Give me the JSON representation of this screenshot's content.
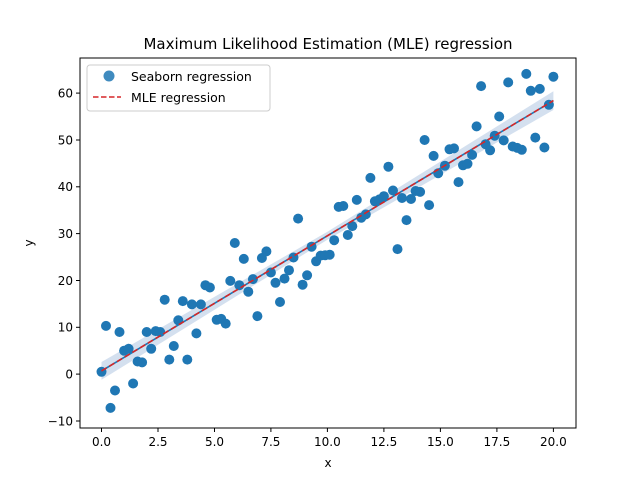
{
  "chart_data": {
    "type": "scatter",
    "title": "Maximum Likelihood Estimation (MLE) regression",
    "xlabel": "x",
    "ylabel": "y",
    "xlim": [
      -0.95,
      21.0
    ],
    "ylim": [
      -11.5,
      67.5
    ],
    "x_ticks": [
      0.0,
      2.5,
      5.0,
      7.5,
      10.0,
      12.5,
      15.0,
      17.5,
      20.0
    ],
    "x_tick_labels": [
      "0.0",
      "2.5",
      "5.0",
      "7.5",
      "10.0",
      "12.5",
      "15.0",
      "17.5",
      "20.0"
    ],
    "y_ticks": [
      -10,
      0,
      10,
      20,
      30,
      40,
      50,
      60
    ],
    "y_tick_labels": [
      "−10",
      "0",
      "10",
      "20",
      "30",
      "40",
      "50",
      "60"
    ],
    "grid": false,
    "legend": {
      "placement": "top-left",
      "entries": [
        "Seaborn regression",
        "MLE regression"
      ]
    },
    "colors": {
      "points": "#1f77b4",
      "mle_line": "#d62728",
      "seaborn_line": "#1f77b4",
      "confidence_band": "#c6d5ea"
    },
    "series": [
      {
        "name": "Seaborn regression",
        "kind": "scatter",
        "x": [
          0.0,
          0.2,
          0.4,
          0.6,
          0.8,
          1.0,
          1.2,
          1.4,
          1.6,
          1.8,
          2.0,
          2.2,
          2.4,
          2.6,
          2.8,
          3.0,
          3.2,
          3.4,
          3.6,
          3.8,
          4.0,
          4.2,
          4.4,
          4.6,
          4.8,
          5.1,
          5.3,
          5.5,
          5.7,
          5.9,
          6.1,
          6.3,
          6.5,
          6.7,
          6.9,
          7.1,
          7.3,
          7.5,
          7.7,
          7.9,
          8.1,
          8.3,
          8.5,
          8.7,
          8.9,
          9.1,
          9.3,
          9.5,
          9.7,
          9.9,
          10.1,
          10.3,
          10.5,
          10.7,
          10.9,
          11.1,
          11.3,
          11.5,
          11.7,
          11.9,
          12.1,
          12.3,
          12.5,
          12.7,
          12.9,
          13.1,
          13.3,
          13.5,
          13.7,
          13.9,
          14.1,
          14.3,
          14.5,
          14.7,
          14.9,
          15.2,
          15.4,
          15.6,
          15.8,
          16.0,
          16.2,
          16.4,
          16.6,
          16.8,
          17.0,
          17.2,
          17.4,
          17.6,
          17.8,
          18.0,
          18.2,
          18.4,
          18.6,
          18.8,
          19.0,
          19.2,
          19.4,
          19.6,
          19.8,
          20.0
        ],
        "y": [
          0.5,
          10.3,
          -7.2,
          -3.5,
          9.0,
          5.0,
          5.4,
          -2.0,
          2.7,
          2.5,
          9.0,
          5.4,
          9.2,
          9.0,
          15.9,
          3.1,
          6.0,
          11.5,
          15.6,
          3.1,
          14.9,
          8.7,
          14.9,
          19.0,
          18.5,
          11.6,
          11.8,
          10.8,
          19.9,
          28.0,
          19.0,
          24.6,
          17.6,
          20.3,
          12.4,
          24.8,
          26.2,
          21.7,
          19.5,
          15.4,
          20.4,
          22.2,
          24.9,
          33.2,
          19.1,
          21.1,
          27.2,
          24.1,
          25.3,
          25.4,
          25.5,
          28.6,
          35.7,
          35.9,
          29.7,
          31.6,
          37.2,
          33.4,
          34.1,
          41.9,
          36.9,
          37.3,
          38.0,
          44.3,
          39.2,
          26.7,
          37.6,
          32.9,
          37.4,
          39.1,
          38.9,
          50.0,
          36.1,
          46.6,
          42.9,
          44.5,
          48.0,
          48.2,
          41.0,
          44.6,
          44.9,
          46.8,
          52.9,
          61.5,
          49.1,
          47.8,
          50.9,
          55.0,
          49.9,
          62.3,
          48.6,
          48.3,
          47.9,
          64.1,
          60.5,
          50.5,
          60.9,
          48.4,
          57.5,
          63.5
        ]
      },
      {
        "name": "MLE regression",
        "kind": "line",
        "x": [
          0.0,
          20.0
        ],
        "y": [
          0.7,
          58.4
        ]
      }
    ],
    "confidence_band": {
      "x": [
        0.0,
        10.0,
        20.0
      ],
      "lower": [
        -1.2,
        28.7,
        56.4
      ],
      "upper": [
        2.6,
        30.4,
        60.4
      ]
    }
  }
}
